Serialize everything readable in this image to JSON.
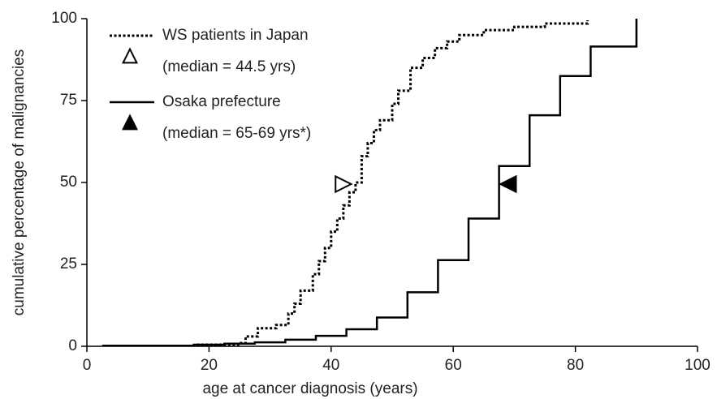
{
  "chart_data": {
    "type": "step",
    "xlabel": "age at cancer diagnosis (years)",
    "ylabel": "cumulative percentage of malignancies",
    "xlim": [
      0,
      100
    ],
    "xticks": [
      0,
      20,
      40,
      60,
      80,
      100
    ],
    "ylim": [
      0,
      100
    ],
    "yticks": [
      0,
      25,
      50,
      75,
      100
    ],
    "grid": false,
    "series": [
      {
        "name": "WS patients in Japan",
        "legend_sublabel": "(median = 44.5 yrs)",
        "color": "#000000",
        "dash": "dotted",
        "x": [
          18,
          25,
          26,
          28,
          31,
          33,
          34,
          35,
          37,
          38,
          39,
          40,
          41,
          42,
          43,
          44,
          45,
          46,
          47,
          48,
          50,
          51,
          53,
          55,
          57,
          59,
          61,
          65,
          70,
          75,
          82
        ],
        "values": [
          0.5,
          1,
          3,
          5.5,
          6.5,
          10,
          13,
          17,
          22,
          26,
          30,
          35,
          39,
          43,
          47,
          50,
          58,
          62,
          66,
          69,
          74,
          78,
          85,
          88,
          91,
          93,
          95,
          96.5,
          97.5,
          98.5,
          99.5
        ],
        "median_marker": {
          "x": 42,
          "y": 49.5,
          "fill": "none",
          "direction": "right"
        }
      },
      {
        "name": "Osaka prefecture",
        "legend_sublabel": "(median = 65-69 yrs*)",
        "color": "#000000",
        "dash": "solid",
        "x": [
          2.5,
          17.5,
          22.5,
          27.5,
          32.5,
          37.5,
          42.5,
          47.5,
          52.5,
          57.5,
          62.5,
          67.5,
          72.5,
          77.5,
          82.5,
          90
        ],
        "values": [
          0.2,
          0.5,
          0.8,
          1.2,
          2,
          3.2,
          5.2,
          8.8,
          16.5,
          26.3,
          39,
          55,
          70.5,
          82.5,
          91.5,
          100
        ],
        "median_marker": {
          "x": 69,
          "y": 49.5,
          "fill": "#000000",
          "direction": "left"
        }
      }
    ]
  }
}
